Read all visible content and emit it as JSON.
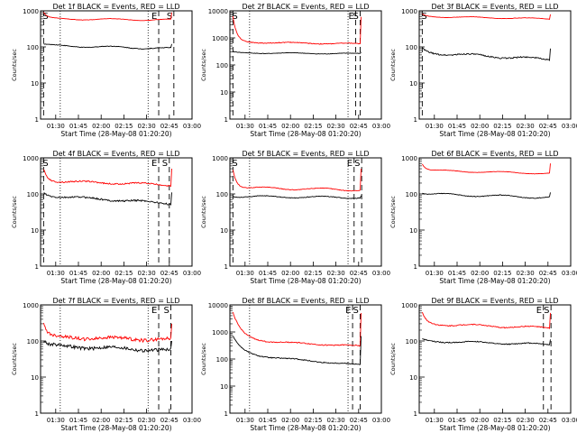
{
  "chart_data": [
    {
      "type": "line",
      "title": "Det 1f BLACK = Events, RED = LLD",
      "ylabel": "Counts/sec",
      "xlabel": "Start Time (28-May-08 01:20:20)",
      "yscale": "log",
      "ylim": [
        1,
        1000
      ],
      "yticks": [
        "1",
        "10",
        "100",
        "1000"
      ],
      "xticks": [
        "01:30",
        "01:45",
        "02:00",
        "02:15",
        "02:30",
        "02:45",
        "03:00"
      ],
      "markers": [
        {
          "label": "S",
          "t": -1
        },
        {
          "label": "E",
          "t": 76
        },
        {
          "label": "S",
          "t": 86
        }
      ],
      "dotted_lines": [
        13,
        71
      ],
      "series": [
        {
          "name": "LLD",
          "color": "#ff0000",
          "start": 900,
          "plateau": 600,
          "end": 560,
          "wiggle": 0.05,
          "noise": 0.01
        },
        {
          "name": "Events",
          "color": "#000000",
          "start": 120,
          "plateau": 110,
          "end": 90,
          "wiggle": 0.06,
          "noise": 0.02
        }
      ]
    },
    {
      "type": "line",
      "title": "Det 2f BLACK = Events, RED = LLD",
      "ylabel": "Counts/sec",
      "xlabel": "Start Time (28-May-08 01:20:20)",
      "yscale": "log",
      "ylim": [
        1,
        10000
      ],
      "yticks": [
        "1",
        "10",
        "100",
        "1000",
        "10000"
      ],
      "xticks": [
        "01:30",
        "01:45",
        "02:00",
        "02:15",
        "02:30",
        "02:45",
        "03:00"
      ],
      "markers": [
        {
          "label": "S",
          "t": -1
        },
        {
          "label": "E",
          "t": 81
        },
        {
          "label": "S",
          "t": 84
        }
      ],
      "dotted_lines": [
        13,
        78
      ],
      "series": [
        {
          "name": "LLD",
          "color": "#ff0000",
          "start": 6000,
          "plateau": 700,
          "end": 600,
          "wiggle": 0.05,
          "noise": 0.03
        },
        {
          "name": "Events",
          "color": "#000000",
          "start": 300,
          "plateau": 280,
          "end": 260,
          "wiggle": 0.04,
          "noise": 0.02
        }
      ]
    },
    {
      "type": "line",
      "title": "Det 3f BLACK = Events, RED = LLD",
      "ylabel": "Counts/sec",
      "xlabel": "Start Time (28-May-08 01:20:20)",
      "yscale": "log",
      "ylim": [
        1,
        1000
      ],
      "yticks": [
        "1",
        "10",
        "100",
        "1000"
      ],
      "xticks": [
        "01:30",
        "01:45",
        "02:00",
        "02:15",
        "02:30",
        "02:45",
        "03:00"
      ],
      "markers": [
        {
          "label": "S",
          "t": -1
        }
      ],
      "dotted_lines": [],
      "series": [
        {
          "name": "LLD",
          "color": "#ff0000",
          "start": 800,
          "plateau": 700,
          "end": 600,
          "wiggle": 0.04,
          "noise": 0.01
        },
        {
          "name": "Events",
          "color": "#000000",
          "start": 90,
          "plateau": 70,
          "end": 45,
          "wiggle": 0.08,
          "noise": 0.04
        }
      ]
    },
    {
      "type": "line",
      "title": "Det 4f BLACK = Events, RED = LLD",
      "ylabel": "Counts/sec",
      "xlabel": "Start Time (28-May-08 01:20:20)",
      "yscale": "log",
      "ylim": [
        1,
        1000
      ],
      "yticks": [
        "1",
        "10",
        "100",
        "1000"
      ],
      "xticks": [
        "01:30",
        "01:45",
        "02:00",
        "02:15",
        "02:30",
        "02:45",
        "03:00"
      ],
      "markers": [
        {
          "label": "S",
          "t": -1
        },
        {
          "label": "E",
          "t": 76
        },
        {
          "label": "S",
          "t": 83
        }
      ],
      "dotted_lines": [
        13,
        71
      ],
      "series": [
        {
          "name": "LLD",
          "color": "#ff0000",
          "start": 500,
          "plateau": 230,
          "end": 180,
          "wiggle": 0.06,
          "noise": 0.04
        },
        {
          "name": "Events",
          "color": "#000000",
          "start": 110,
          "plateau": 90,
          "end": 55,
          "wiggle": 0.06,
          "noise": 0.05
        }
      ]
    },
    {
      "type": "line",
      "title": "Det 5f BLACK = Events, RED = LLD",
      "ylabel": "Counts/sec",
      "xlabel": "Start Time (28-May-08 01:20:20)",
      "yscale": "log",
      "ylim": [
        1,
        1000
      ],
      "yticks": [
        "1",
        "10",
        "100",
        "1000"
      ],
      "xticks": [
        "01:30",
        "01:45",
        "02:00",
        "02:15",
        "02:30",
        "02:45",
        "03:00"
      ],
      "markers": [
        {
          "label": "S",
          "t": -1
        },
        {
          "label": "E",
          "t": 80
        },
        {
          "label": "S",
          "t": 85
        }
      ],
      "dotted_lines": [
        13,
        78
      ],
      "series": [
        {
          "name": "LLD",
          "color": "#ff0000",
          "start": 500,
          "plateau": 150,
          "end": 130,
          "wiggle": 0.07,
          "noise": 0.02
        },
        {
          "name": "Events",
          "color": "#000000",
          "start": 90,
          "plateau": 85,
          "end": 80,
          "wiggle": 0.06,
          "noise": 0.02
        }
      ]
    },
    {
      "type": "line",
      "title": "Det 6f BLACK = Events, RED = LLD",
      "ylabel": "Counts/sec",
      "xlabel": "Start Time (28-May-08 01:20:20)",
      "yscale": "log",
      "ylim": [
        1,
        1000
      ],
      "yticks": [
        "1",
        "10",
        "100",
        "1000"
      ],
      "xticks": [
        "01:30",
        "01:45",
        "02:00",
        "02:15",
        "02:30",
        "02:45",
        "03:00"
      ],
      "markers": [],
      "dotted_lines": [],
      "series": [
        {
          "name": "LLD",
          "color": "#ff0000",
          "start": 700,
          "plateau": 450,
          "end": 370,
          "wiggle": 0.05,
          "noise": 0.01
        },
        {
          "name": "Events",
          "color": "#000000",
          "start": 110,
          "plateau": 100,
          "end": 80,
          "wiggle": 0.07,
          "noise": 0.02
        }
      ]
    },
    {
      "type": "line",
      "title": "Det 7f BLACK = Events, RED = LLD",
      "ylabel": "Counts/sec",
      "xlabel": "Start Time (28-May-08 01:20:20)",
      "yscale": "log",
      "ylim": [
        1,
        1000
      ],
      "yticks": [
        "1",
        "10",
        "100",
        "1000"
      ],
      "xticks": [
        "01:30",
        "01:45",
        "02:00",
        "02:15",
        "02:30",
        "02:45",
        "03:00"
      ],
      "markers": [
        {
          "label": "E",
          "t": 76
        },
        {
          "label": "S",
          "t": 84
        }
      ],
      "dotted_lines": [
        13,
        71
      ],
      "series": [
        {
          "name": "LLD",
          "color": "#ff0000",
          "start": 300,
          "plateau": 130,
          "end": 110,
          "wiggle": 0.08,
          "noise": 0.1
        },
        {
          "name": "Events",
          "color": "#000000",
          "start": 100,
          "plateau": 75,
          "end": 55,
          "wiggle": 0.08,
          "noise": 0.1
        }
      ]
    },
    {
      "type": "line",
      "title": "Det 8f BLACK = Events, RED = LLD",
      "ylabel": "Counts/sec",
      "xlabel": "Start Time (28-May-08 01:20:20)",
      "yscale": "log",
      "ylim": [
        1,
        10000
      ],
      "yticks": [
        "1",
        "10",
        "100",
        "1000",
        "10000"
      ],
      "xticks": [
        "01:30",
        "01:45",
        "02:00",
        "02:15",
        "02:30",
        "02:45",
        "03:00"
      ],
      "markers": [
        {
          "label": "E",
          "t": 79
        },
        {
          "label": "S",
          "t": 84
        }
      ],
      "dotted_lines": [
        13,
        78
      ],
      "series": [
        {
          "name": "LLD",
          "color": "#ff0000",
          "start": 5000,
          "plateau": 500,
          "end": 300,
          "wiggle": 0.05,
          "noise": 0.04,
          "decay": true
        },
        {
          "name": "Events",
          "color": "#000000",
          "start": 700,
          "plateau": 150,
          "end": 60,
          "wiggle": 0.05,
          "noise": 0.04,
          "decay": true
        }
      ]
    },
    {
      "type": "line",
      "title": "Det 9f BLACK = Events, RED = LLD",
      "ylabel": "Counts/sec",
      "xlabel": "Start Time (28-May-08 01:20:20)",
      "yscale": "log",
      "ylim": [
        1,
        1000
      ],
      "yticks": [
        "1",
        "10",
        "100",
        "1000"
      ],
      "xticks": [
        "01:30",
        "01:45",
        "02:00",
        "02:15",
        "02:30",
        "02:45",
        "03:00"
      ],
      "markers": [
        {
          "label": "E",
          "t": 80
        },
        {
          "label": "S",
          "t": 85
        }
      ],
      "dotted_lines": [],
      "series": [
        {
          "name": "LLD",
          "color": "#ff0000",
          "start": 600,
          "plateau": 300,
          "end": 230,
          "wiggle": 0.07,
          "noise": 0.03
        },
        {
          "name": "Events",
          "color": "#000000",
          "start": 110,
          "plateau": 100,
          "end": 80,
          "wiggle": 0.06,
          "noise": 0.03
        }
      ]
    }
  ]
}
